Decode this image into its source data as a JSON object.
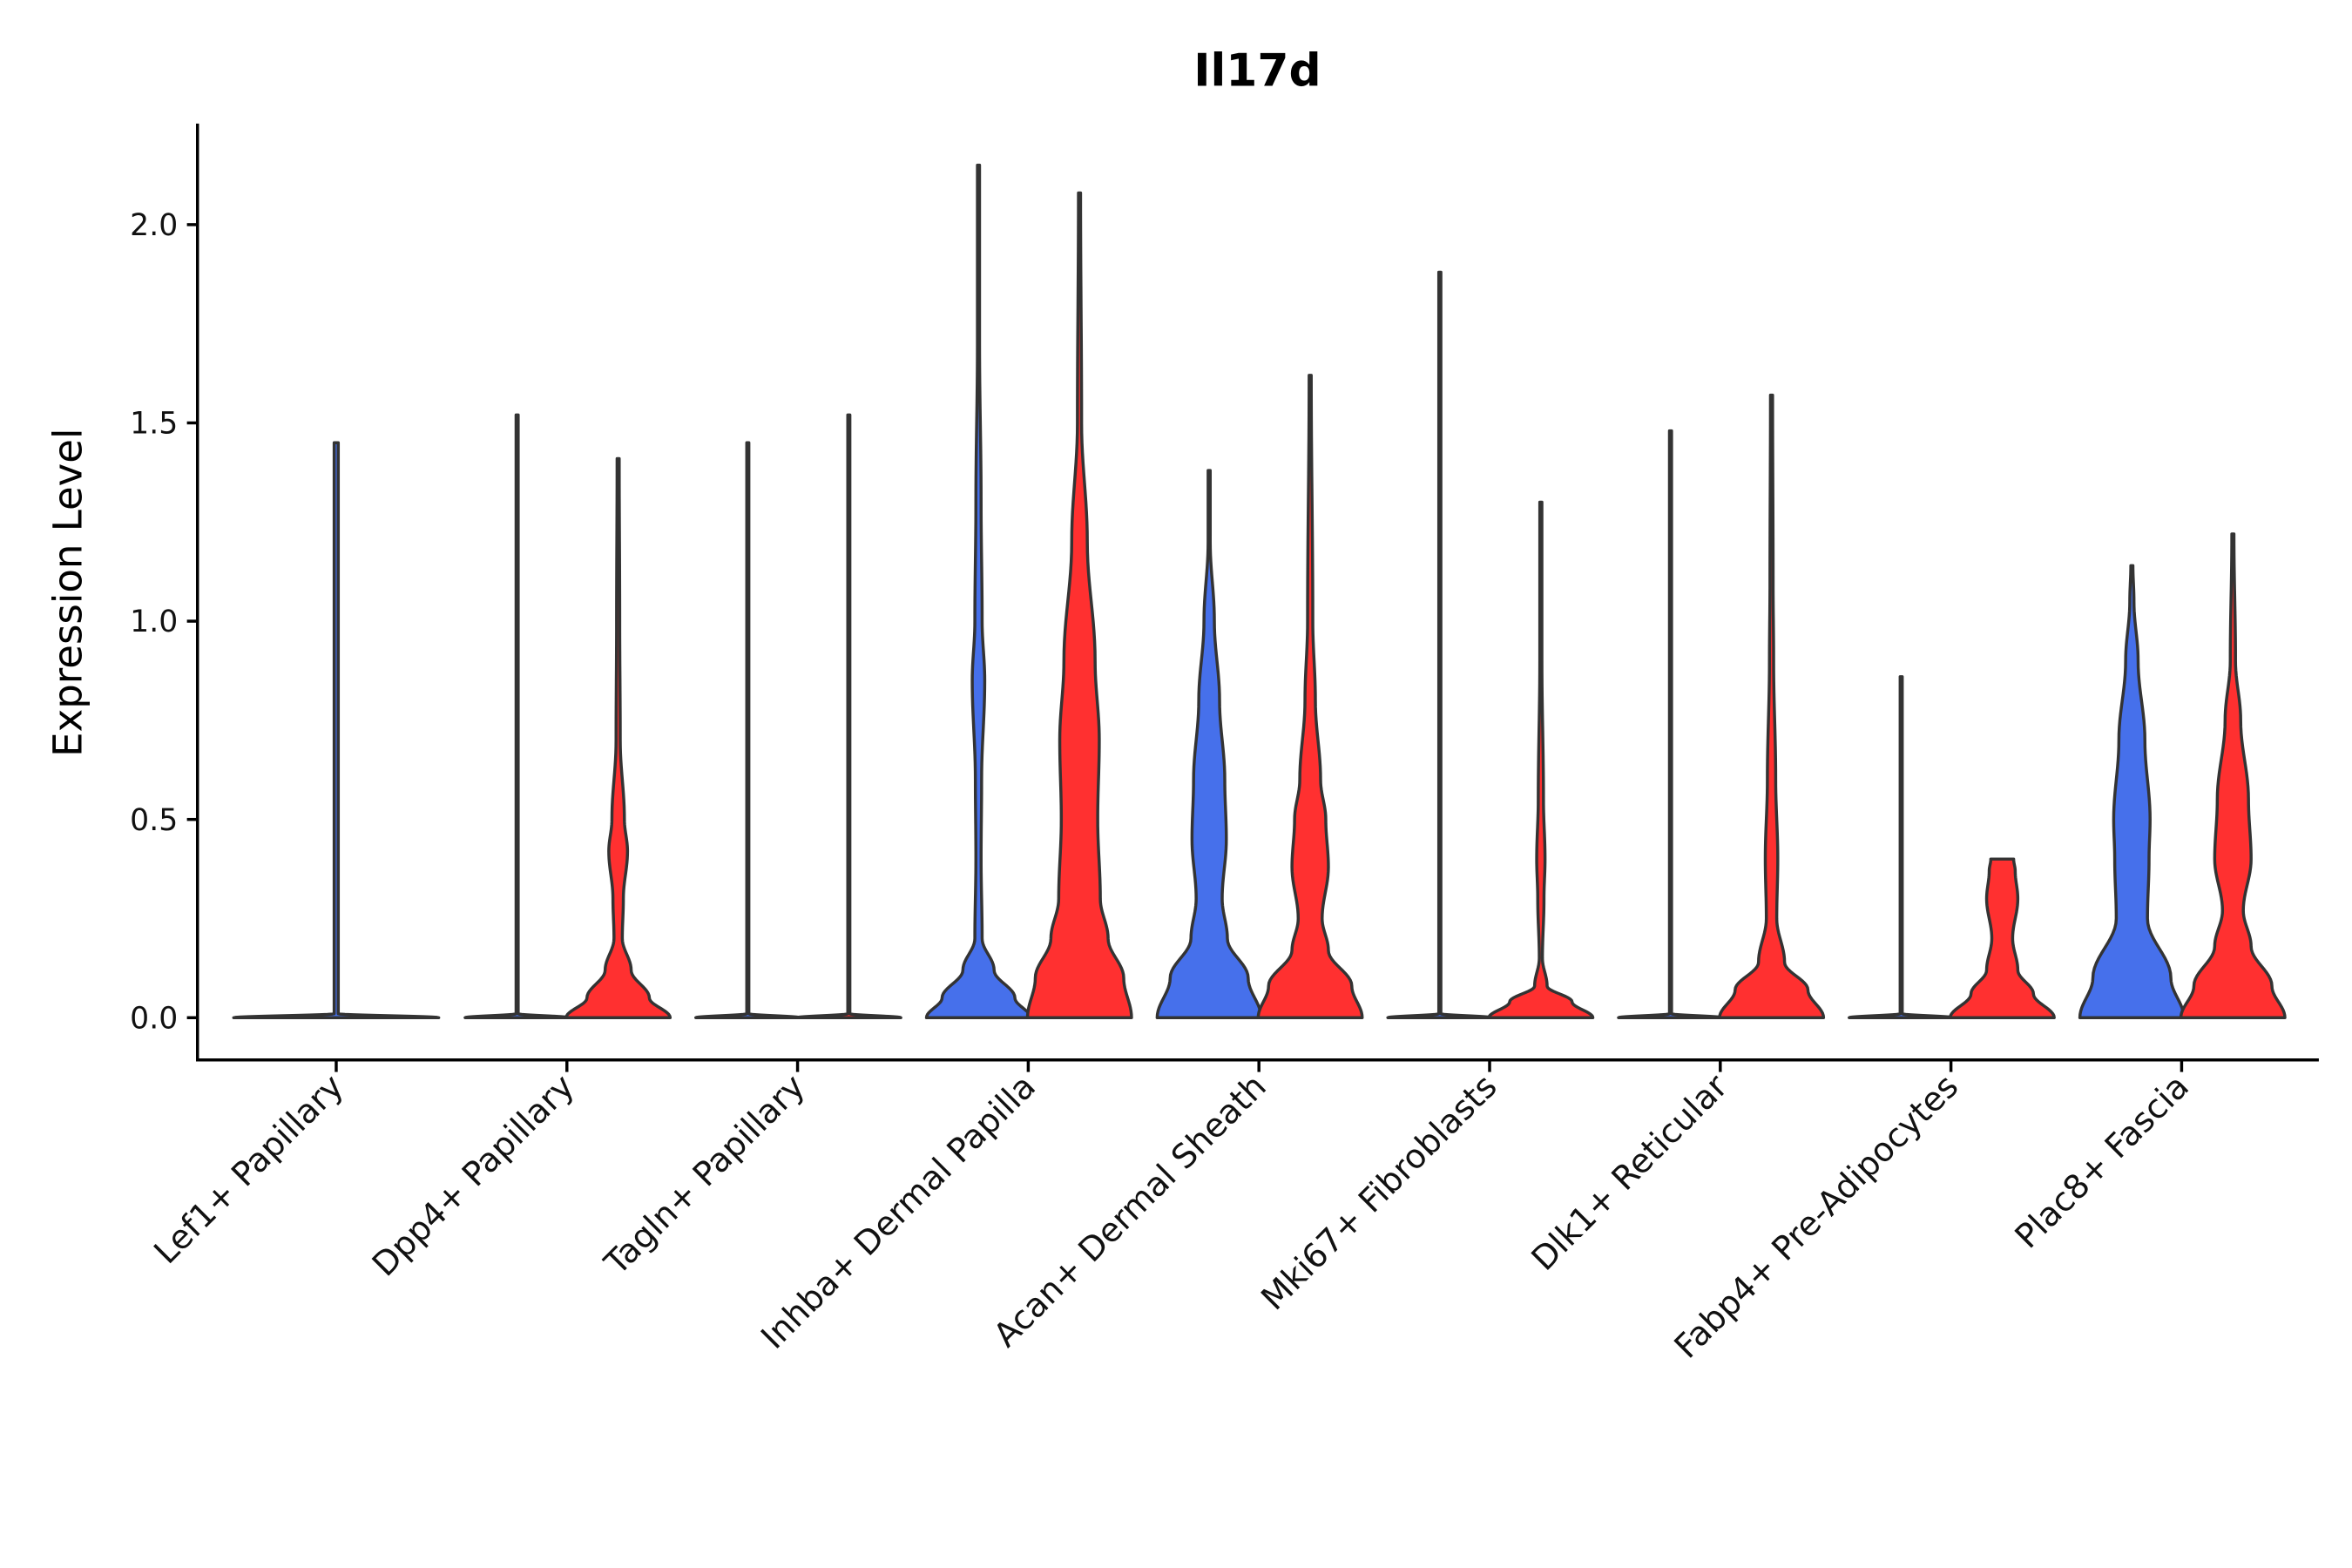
{
  "chart_data": {
    "type": "violin",
    "title": "Il17d",
    "xlabel": "",
    "ylabel": "Expression Level",
    "ylim": [
      -0.11,
      2.25
    ],
    "yticks": [
      "0.0",
      "0.5",
      "1.0",
      "1.5",
      "2.0"
    ],
    "ytick_values": [
      0,
      0.5,
      1.0,
      1.5,
      2.0
    ],
    "colors": {
      "blue": "#4670EB",
      "red": "#FF3030",
      "outline": "#333333"
    },
    "categories": [
      "Lef1+ Papillary",
      "Dpp4+ Papillary",
      "Tagln+ Papillary",
      "Inhba+ Dermal Papilla",
      "Acan+ Dermal Sheath",
      "Mki67+ Fibroblasts",
      "Dlk1+ Reticular",
      "Fabp4+ Pre-Adipocytes",
      "Plac8+ Fascia"
    ],
    "groups": [
      {
        "violins": [
          {
            "color": "blue",
            "single": true,
            "max": 1.45,
            "density": [
              [
                0,
                1
              ],
              [
                0.01,
                0.02
              ],
              [
                1.45,
                0.02
              ]
            ]
          }
        ]
      },
      {
        "violins": [
          {
            "color": "blue",
            "max": 1.52,
            "density": [
              [
                0,
                1
              ],
              [
                0.01,
                0.02
              ],
              [
                1.52,
                0.02
              ]
            ]
          },
          {
            "color": "red",
            "max": 1.41,
            "density": [
              [
                0,
                1
              ],
              [
                0.05,
                0.6
              ],
              [
                0.12,
                0.25
              ],
              [
                0.2,
                0.08
              ],
              [
                0.3,
                0.1
              ],
              [
                0.42,
                0.18
              ],
              [
                0.5,
                0.12
              ],
              [
                0.7,
                0.04
              ],
              [
                1.0,
                0.03
              ],
              [
                1.41,
                0.02
              ]
            ]
          }
        ]
      },
      {
        "violins": [
          {
            "color": "blue",
            "max": 1.45,
            "density": [
              [
                0,
                1
              ],
              [
                0.01,
                0.02
              ],
              [
                1.45,
                0.02
              ]
            ]
          },
          {
            "color": "red",
            "max": 1.52,
            "density": [
              [
                0,
                1
              ],
              [
                0.01,
                0.02
              ],
              [
                1.52,
                0.02
              ]
            ]
          }
        ]
      },
      {
        "violins": [
          {
            "color": "blue",
            "max": 2.15,
            "density": [
              [
                0,
                1
              ],
              [
                0.05,
                0.7
              ],
              [
                0.12,
                0.3
              ],
              [
                0.2,
                0.07
              ],
              [
                0.4,
                0.05
              ],
              [
                0.6,
                0.06
              ],
              [
                0.85,
                0.12
              ],
              [
                1.0,
                0.07
              ],
              [
                1.3,
                0.05
              ],
              [
                1.7,
                0.02
              ],
              [
                2.15,
                0.02
              ]
            ]
          },
          {
            "color": "red",
            "max": 2.08,
            "density": [
              [
                0,
                1
              ],
              [
                0.1,
                0.85
              ],
              [
                0.2,
                0.55
              ],
              [
                0.3,
                0.4
              ],
              [
                0.5,
                0.35
              ],
              [
                0.7,
                0.38
              ],
              [
                0.9,
                0.3
              ],
              [
                1.2,
                0.15
              ],
              [
                1.5,
                0.04
              ],
              [
                2.08,
                0.02
              ]
            ]
          }
        ]
      },
      {
        "violins": [
          {
            "color": "blue",
            "max": 1.38,
            "density": [
              [
                0,
                1
              ],
              [
                0.1,
                0.75
              ],
              [
                0.2,
                0.35
              ],
              [
                0.3,
                0.25
              ],
              [
                0.45,
                0.33
              ],
              [
                0.6,
                0.3
              ],
              [
                0.8,
                0.2
              ],
              [
                1.0,
                0.1
              ],
              [
                1.2,
                0.02
              ],
              [
                1.38,
                0.02
              ]
            ]
          },
          {
            "color": "red",
            "max": 1.62,
            "density": [
              [
                0,
                1
              ],
              [
                0.08,
                0.8
              ],
              [
                0.17,
                0.35
              ],
              [
                0.25,
                0.23
              ],
              [
                0.38,
                0.35
              ],
              [
                0.5,
                0.3
              ],
              [
                0.6,
                0.2
              ],
              [
                0.8,
                0.1
              ],
              [
                1.0,
                0.05
              ],
              [
                1.62,
                0.02
              ]
            ]
          }
        ]
      },
      {
        "violins": [
          {
            "color": "blue",
            "max": 1.88,
            "density": [
              [
                0,
                1
              ],
              [
                0.01,
                0.02
              ],
              [
                1.88,
                0.02
              ]
            ]
          },
          {
            "color": "red",
            "max": 1.3,
            "density": [
              [
                0,
                1
              ],
              [
                0.04,
                0.6
              ],
              [
                0.08,
                0.12
              ],
              [
                0.15,
                0.03
              ],
              [
                0.3,
                0.06
              ],
              [
                0.4,
                0.08
              ],
              [
                0.55,
                0.05
              ],
              [
                0.9,
                0.02
              ],
              [
                1.3,
                0.02
              ]
            ]
          }
        ]
      },
      {
        "violins": [
          {
            "color": "blue",
            "max": 1.48,
            "density": [
              [
                0,
                1
              ],
              [
                0.01,
                0.02
              ],
              [
                1.48,
                0.02
              ]
            ]
          },
          {
            "color": "red",
            "max": 1.57,
            "density": [
              [
                0,
                1
              ],
              [
                0.07,
                0.7
              ],
              [
                0.14,
                0.25
              ],
              [
                0.25,
                0.1
              ],
              [
                0.4,
                0.12
              ],
              [
                0.6,
                0.08
              ],
              [
                0.9,
                0.04
              ],
              [
                1.1,
                0.03
              ],
              [
                1.57,
                0.02
              ]
            ]
          }
        ]
      },
      {
        "violins": [
          {
            "color": "blue",
            "max": 0.86,
            "density": [
              [
                0,
                1
              ],
              [
                0.01,
                0.02
              ],
              [
                0.86,
                0.02
              ]
            ]
          },
          {
            "color": "red",
            "max": 0.4,
            "density": [
              [
                0,
                1
              ],
              [
                0.06,
                0.6
              ],
              [
                0.12,
                0.3
              ],
              [
                0.2,
                0.2
              ],
              [
                0.3,
                0.3
              ],
              [
                0.37,
                0.25
              ],
              [
                0.4,
                0.22
              ]
            ]
          }
        ]
      },
      {
        "violins": [
          {
            "color": "blue",
            "max": 1.14,
            "density": [
              [
                0,
                1
              ],
              [
                0.1,
                0.75
              ],
              [
                0.25,
                0.3
              ],
              [
                0.4,
                0.33
              ],
              [
                0.5,
                0.35
              ],
              [
                0.7,
                0.25
              ],
              [
                0.9,
                0.12
              ],
              [
                1.05,
                0.04
              ],
              [
                1.14,
                0.02
              ]
            ]
          },
          {
            "color": "red",
            "max": 1.22,
            "density": [
              [
                0,
                1
              ],
              [
                0.08,
                0.75
              ],
              [
                0.18,
                0.35
              ],
              [
                0.27,
                0.2
              ],
              [
                0.4,
                0.35
              ],
              [
                0.55,
                0.3
              ],
              [
                0.75,
                0.15
              ],
              [
                0.9,
                0.05
              ],
              [
                1.22,
                0.02
              ]
            ]
          }
        ]
      }
    ]
  }
}
